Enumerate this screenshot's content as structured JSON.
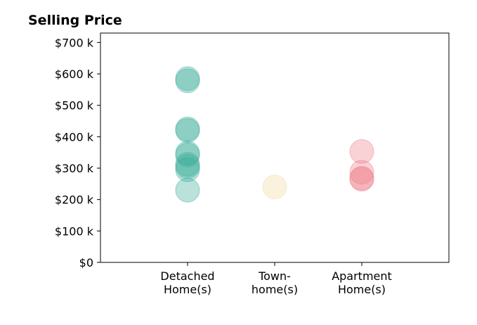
{
  "chart_data": {
    "type": "scatter",
    "title": "Selling Price",
    "xlabel": "",
    "ylabel": "",
    "categories": [
      {
        "label": [
          "Detached",
          "Home(s)"
        ],
        "color": "#3aab98"
      },
      {
        "label": [
          "Town-",
          "home(s)"
        ],
        "color": "#f3d9a0"
      },
      {
        "label": [
          "Apartment",
          "Home(s)"
        ],
        "color": "#ee7d8a"
      }
    ],
    "ylim": [
      0,
      730000
    ],
    "yticks": [
      {
        "value": 0,
        "label": "$0"
      },
      {
        "value": 100000,
        "label": "$100 k"
      },
      {
        "value": 200000,
        "label": "$200 k"
      },
      {
        "value": 300000,
        "label": "$300 k"
      },
      {
        "value": 400000,
        "label": "$400 k"
      },
      {
        "value": 500000,
        "label": "$500 k"
      },
      {
        "value": 600000,
        "label": "$600 k"
      },
      {
        "value": 700000,
        "label": "$700 k"
      }
    ],
    "points": [
      {
        "category": 0,
        "y": 585000
      },
      {
        "category": 0,
        "y": 578000
      },
      {
        "category": 0,
        "y": 425000
      },
      {
        "category": 0,
        "y": 420000
      },
      {
        "category": 0,
        "y": 348000
      },
      {
        "category": 0,
        "y": 342000
      },
      {
        "category": 0,
        "y": 312000
      },
      {
        "category": 0,
        "y": 305000
      },
      {
        "category": 0,
        "y": 295000
      },
      {
        "category": 0,
        "y": 230000
      },
      {
        "category": 1,
        "y": 240000
      },
      {
        "category": 2,
        "y": 353000
      },
      {
        "category": 2,
        "y": 287000
      },
      {
        "category": 2,
        "y": 268000
      },
      {
        "category": 2,
        "y": 265000
      }
    ],
    "grid": false,
    "legend": "none"
  }
}
